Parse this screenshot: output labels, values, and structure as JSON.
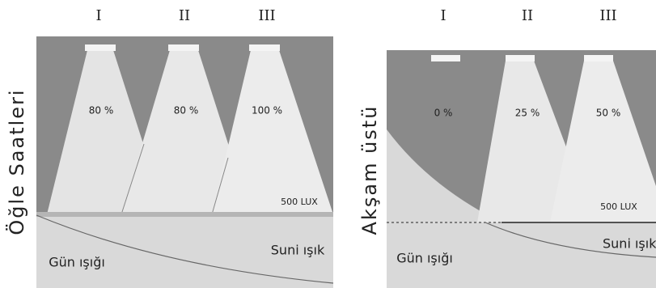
{
  "left_panel": {
    "title": "Öğle Saatleri",
    "lamps": [
      "I",
      "II",
      "III"
    ],
    "levels": [
      "80 %",
      "80 %",
      "100 %"
    ],
    "illuminance": "500 LUX",
    "artificial": "Suni ışık",
    "daylight": "Gün ışığı"
  },
  "right_panel": {
    "title": "Akşam üstü",
    "lamps": [
      "I",
      "II",
      "III"
    ],
    "levels": [
      "0 %",
      "25 %",
      "50 %"
    ],
    "illuminance": "500 LUX",
    "artificial": "Suni ışık",
    "daylight": "Gün ışığı"
  }
}
